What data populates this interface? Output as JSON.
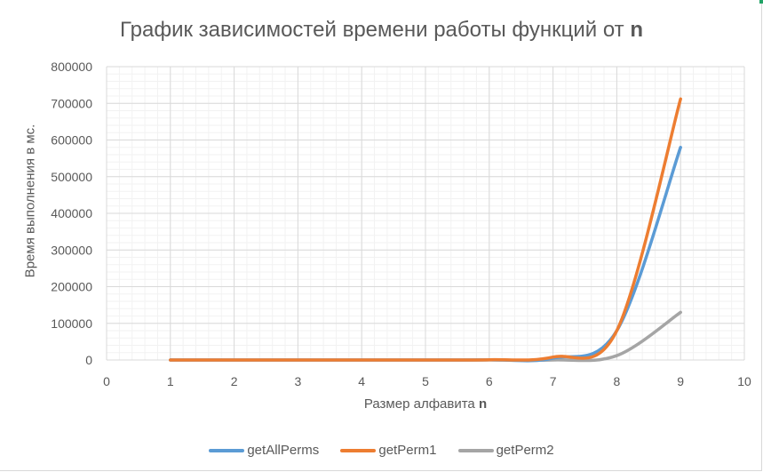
{
  "chart_data": {
    "type": "line",
    "title_main": "График зависимостей времени работы функций от ",
    "title_bold": "n",
    "xlabel_main": "Размер алфавита ",
    "xlabel_bold": "n",
    "ylabel": "Время выполнения в мс.",
    "xlim": [
      0,
      10
    ],
    "ylim": [
      0,
      800000
    ],
    "x_ticks": [
      0,
      1,
      2,
      3,
      4,
      5,
      6,
      7,
      8,
      9,
      10
    ],
    "y_ticks": [
      0,
      100000,
      200000,
      300000,
      400000,
      500000,
      600000,
      700000,
      800000
    ],
    "grid": true,
    "smooth": true,
    "legend_position": "bottom",
    "x": [
      1,
      2,
      3,
      4,
      5,
      6,
      7,
      8,
      9
    ],
    "series": [
      {
        "name": "getAllPerms",
        "color": "#5b9bd5",
        "values": [
          0,
          0,
          0,
          0,
          100,
          600,
          5000,
          80000,
          580000
        ]
      },
      {
        "name": "getPerm1",
        "color": "#ed7d31",
        "values": [
          0,
          0,
          0,
          0,
          100,
          700,
          8000,
          80000,
          712000
        ]
      },
      {
        "name": "getPerm2",
        "color": "#a5a5a5",
        "values": [
          0,
          0,
          0,
          0,
          0,
          0,
          0,
          12000,
          130000
        ]
      }
    ]
  }
}
